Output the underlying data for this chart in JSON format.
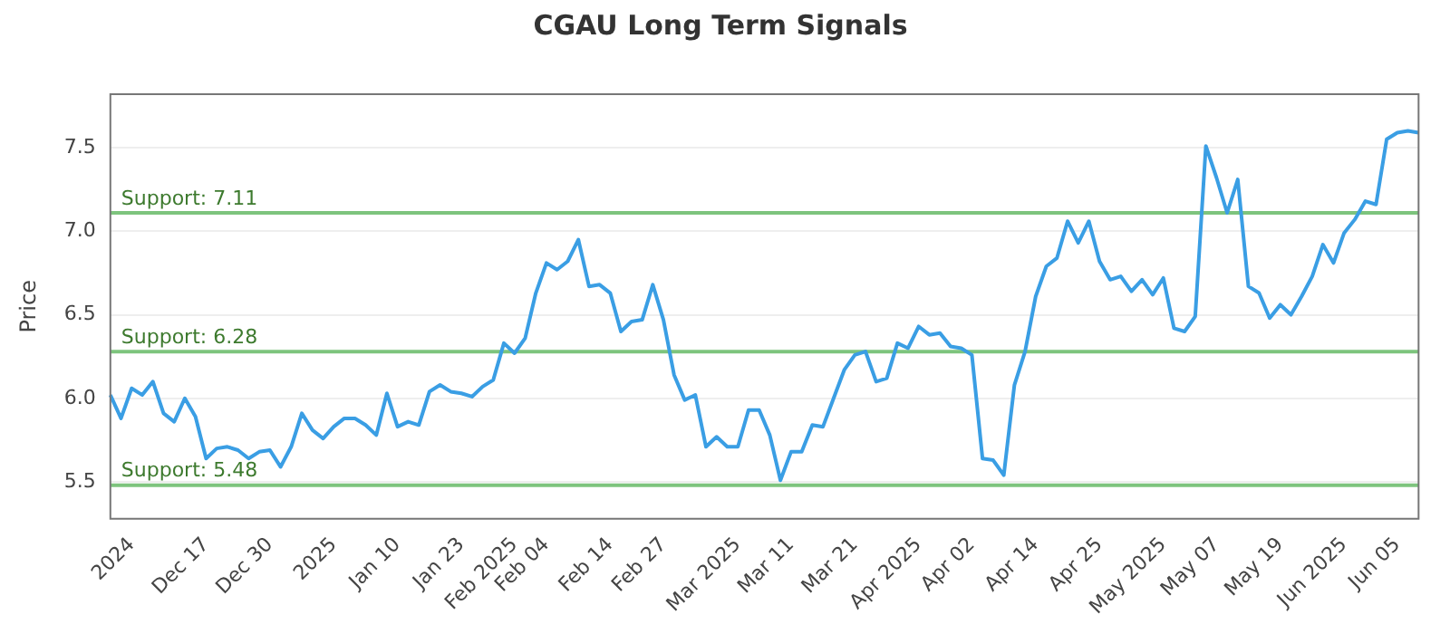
{
  "chart_data": {
    "type": "line",
    "title": "CGAU Long Term Signals",
    "ylabel": "Price",
    "categories": [
      null,
      null,
      "2024",
      null,
      null,
      null,
      null,
      null,
      null,
      "Dec 17",
      null,
      null,
      null,
      null,
      null,
      "Dec 30",
      null,
      null,
      null,
      null,
      null,
      "2025",
      null,
      null,
      null,
      null,
      null,
      "Jan 10",
      null,
      null,
      null,
      null,
      null,
      "Jan 23",
      null,
      null,
      null,
      null,
      "Feb 2025",
      null,
      null,
      "Feb 04",
      null,
      null,
      null,
      null,
      null,
      "Feb 14",
      null,
      null,
      null,
      null,
      "Feb 27",
      null,
      null,
      null,
      null,
      null,
      null,
      "Mar 2025",
      null,
      null,
      null,
      null,
      "Mar 11",
      null,
      null,
      null,
      null,
      null,
      "Mar 21",
      null,
      null,
      null,
      null,
      null,
      "Apr 2025",
      null,
      null,
      null,
      null,
      "Apr 02",
      null,
      null,
      null,
      null,
      null,
      "Apr 14",
      null,
      null,
      null,
      null,
      null,
      "Apr 25",
      null,
      null,
      null,
      null,
      null,
      "May 2025",
      null,
      null,
      null,
      null,
      "May 07",
      null,
      null,
      null,
      null,
      null,
      "May 19",
      null,
      null,
      null,
      null,
      null,
      "Jun 2025",
      null,
      null,
      null,
      null,
      "Jun 05",
      null,
      null
    ],
    "series": [
      {
        "color": "#3a9ee4",
        "values": [
          6.02,
          5.88,
          6.06,
          6.02,
          6.1,
          5.91,
          5.86,
          6.0,
          5.89,
          5.64,
          5.7,
          5.71,
          5.69,
          5.64,
          5.68,
          5.69,
          5.59,
          5.71,
          5.91,
          5.81,
          5.76,
          5.83,
          5.88,
          5.88,
          5.84,
          5.78,
          6.03,
          5.83,
          5.86,
          5.84,
          6.04,
          6.08,
          6.04,
          6.03,
          6.01,
          6.07,
          6.11,
          6.33,
          6.27,
          6.36,
          6.63,
          6.81,
          6.77,
          6.82,
          6.95,
          6.67,
          6.68,
          6.63,
          6.4,
          6.46,
          6.47,
          6.68,
          6.47,
          6.14,
          5.99,
          6.02,
          5.71,
          5.77,
          5.71,
          5.71,
          5.93,
          5.93,
          5.78,
          5.51,
          5.68,
          5.68,
          5.84,
          5.83,
          6.0,
          6.17,
          6.26,
          6.28,
          6.1,
          6.12,
          6.33,
          6.3,
          6.43,
          6.38,
          6.39,
          6.31,
          6.3,
          6.26,
          5.64,
          5.63,
          5.54,
          6.08,
          6.28,
          6.61,
          6.79,
          6.84,
          7.06,
          6.93,
          7.06,
          6.82,
          6.71,
          6.73,
          6.64,
          6.71,
          6.62,
          6.72,
          6.42,
          6.4,
          6.49,
          7.51,
          7.32,
          7.11,
          7.31,
          6.67,
          6.63,
          6.48,
          6.56,
          6.5,
          6.61,
          6.73,
          6.92,
          6.81,
          6.99,
          7.07,
          7.18,
          7.16,
          7.55,
          7.59,
          7.6,
          7.59
        ]
      }
    ],
    "ylim": [
      5.28,
      7.82
    ],
    "yticks": [
      5.5,
      {
        "value": 6,
        "label": "6.0"
      },
      6.5,
      {
        "value": 7,
        "label": "7.0"
      },
      7.5
    ],
    "ref_lines": [
      {
        "axis": "y",
        "value": 7.11,
        "label": "Support: 7.11",
        "color": "#7dc47d"
      },
      {
        "axis": "y",
        "value": 6.28,
        "label": "Support: 6.28",
        "color": "#7dc47d"
      },
      {
        "axis": "y",
        "value": 5.48,
        "label": "Support: 5.48",
        "color": "#7dc47d"
      }
    ],
    "grid": "y",
    "legend": false,
    "marker": "none",
    "line_style": "solid"
  }
}
